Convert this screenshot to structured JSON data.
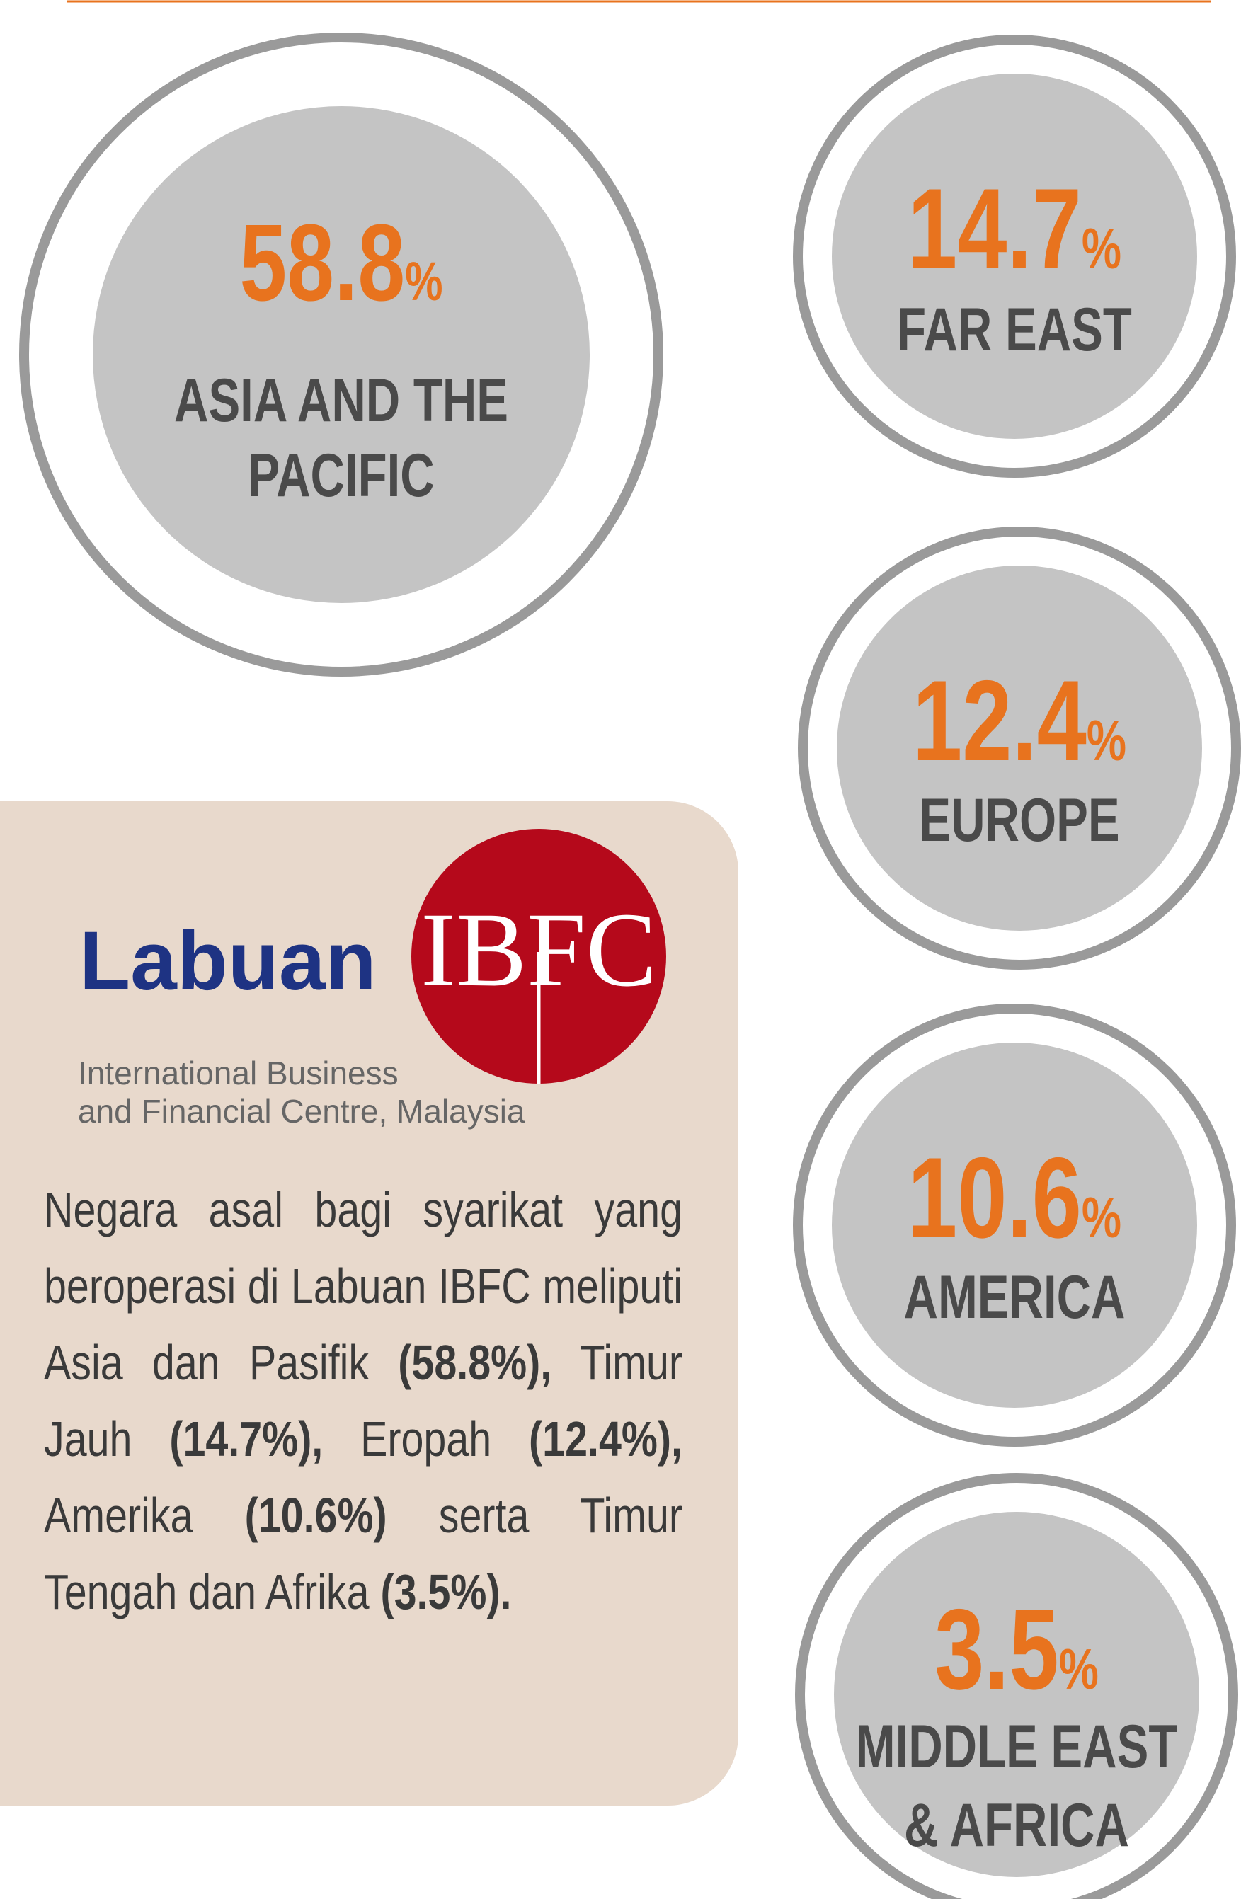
{
  "regions": [
    {
      "value": "58.8",
      "unit": "%",
      "label": [
        "ASIA AND THE",
        "PACIFIC"
      ]
    },
    {
      "value": "14.7",
      "unit": "%",
      "label": [
        "FAR EAST"
      ]
    },
    {
      "value": "12.4",
      "unit": "%",
      "label": [
        "EUROPE"
      ]
    },
    {
      "value": "10.6",
      "unit": "%",
      "label": [
        "AMERICA"
      ]
    },
    {
      "value": "3.5",
      "unit": "%",
      "label": [
        "MIDDLE EAST",
        "& AFRICA"
      ]
    }
  ],
  "logo": {
    "name": "Labuan",
    "mark": "IBFC",
    "tagline": [
      "International Business",
      "and Financial Centre, Malaysia"
    ]
  },
  "description": [
    {
      "text": "Negara asal bagi syarikat yang beroperasi di Labuan IBFC meliputi Asia dan Pasifik ",
      "bold": false
    },
    {
      "text": "(58.8%),",
      "bold": true
    },
    {
      "text": " Timur Jauh ",
      "bold": false
    },
    {
      "text": "(14.7%),",
      "bold": true
    },
    {
      "text": " Eropah ",
      "bold": false
    },
    {
      "text": "(12.4%),",
      "bold": true
    },
    {
      "text": " Amerika ",
      "bold": false
    },
    {
      "text": "(10.6%)",
      "bold": true
    },
    {
      "text": " serta Timur Tengah dan Afrika ",
      "bold": false
    },
    {
      "text": "(3.5%).",
      "bold": true
    }
  ]
}
